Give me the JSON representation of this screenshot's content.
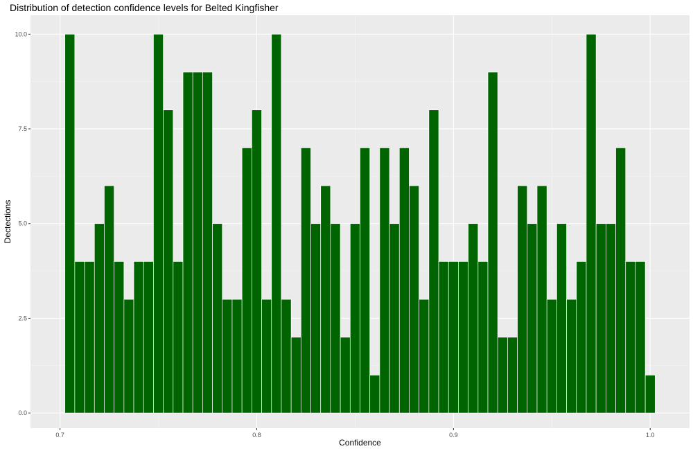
{
  "chart_data": {
    "type": "bar",
    "title": "Distribution of detection confidence levels for Belted Kingfisher",
    "xlabel": "Confidence",
    "ylabel": "Dectections",
    "xlim": [
      0.685,
      1.02
    ],
    "ylim": [
      -0.4,
      10.5
    ],
    "bin_width": 0.005,
    "x_ticks": [
      {
        "value": 0.7,
        "label": "0.7"
      },
      {
        "value": 0.8,
        "label": "0.8"
      },
      {
        "value": 0.9,
        "label": "0.9"
      },
      {
        "value": 1.0,
        "label": "1.0"
      }
    ],
    "y_ticks": [
      {
        "value": 0,
        "label": "0.0"
      },
      {
        "value": 2.5,
        "label": "2.5"
      },
      {
        "value": 5,
        "label": "5.0"
      },
      {
        "value": 7.5,
        "label": "7.5"
      },
      {
        "value": 10,
        "label": "10.0"
      }
    ],
    "x": [
      0.705,
      0.71,
      0.715,
      0.72,
      0.725,
      0.73,
      0.735,
      0.74,
      0.745,
      0.75,
      0.755,
      0.76,
      0.765,
      0.77,
      0.775,
      0.78,
      0.785,
      0.79,
      0.795,
      0.8,
      0.805,
      0.81,
      0.815,
      0.82,
      0.825,
      0.83,
      0.835,
      0.84,
      0.845,
      0.85,
      0.855,
      0.86,
      0.865,
      0.87,
      0.875,
      0.88,
      0.885,
      0.89,
      0.895,
      0.9,
      0.905,
      0.91,
      0.915,
      0.92,
      0.925,
      0.93,
      0.935,
      0.94,
      0.945,
      0.95,
      0.955,
      0.96,
      0.965,
      0.97,
      0.975,
      0.98,
      0.985,
      0.99,
      0.995,
      1.0
    ],
    "values": [
      10,
      4,
      4,
      5,
      6,
      4,
      3,
      4,
      4,
      10,
      8,
      4,
      9,
      9,
      9,
      5,
      3,
      3,
      7,
      8,
      3,
      10,
      3,
      2,
      7,
      5,
      6,
      5,
      2,
      5,
      7,
      1,
      7,
      5,
      7,
      6,
      3,
      8,
      4,
      4,
      4,
      5,
      4,
      9,
      2,
      2,
      6,
      5,
      6,
      3,
      5,
      3,
      4,
      10,
      5,
      5,
      7,
      4,
      4,
      1
    ],
    "colors": {
      "bar_fill": "#006400",
      "bar_outline": "#ffffff",
      "panel_background": "#ebebeb",
      "grid_major": "#ffffff",
      "grid_minor": "#f5f5f5"
    },
    "grid": true,
    "legend": "none"
  }
}
